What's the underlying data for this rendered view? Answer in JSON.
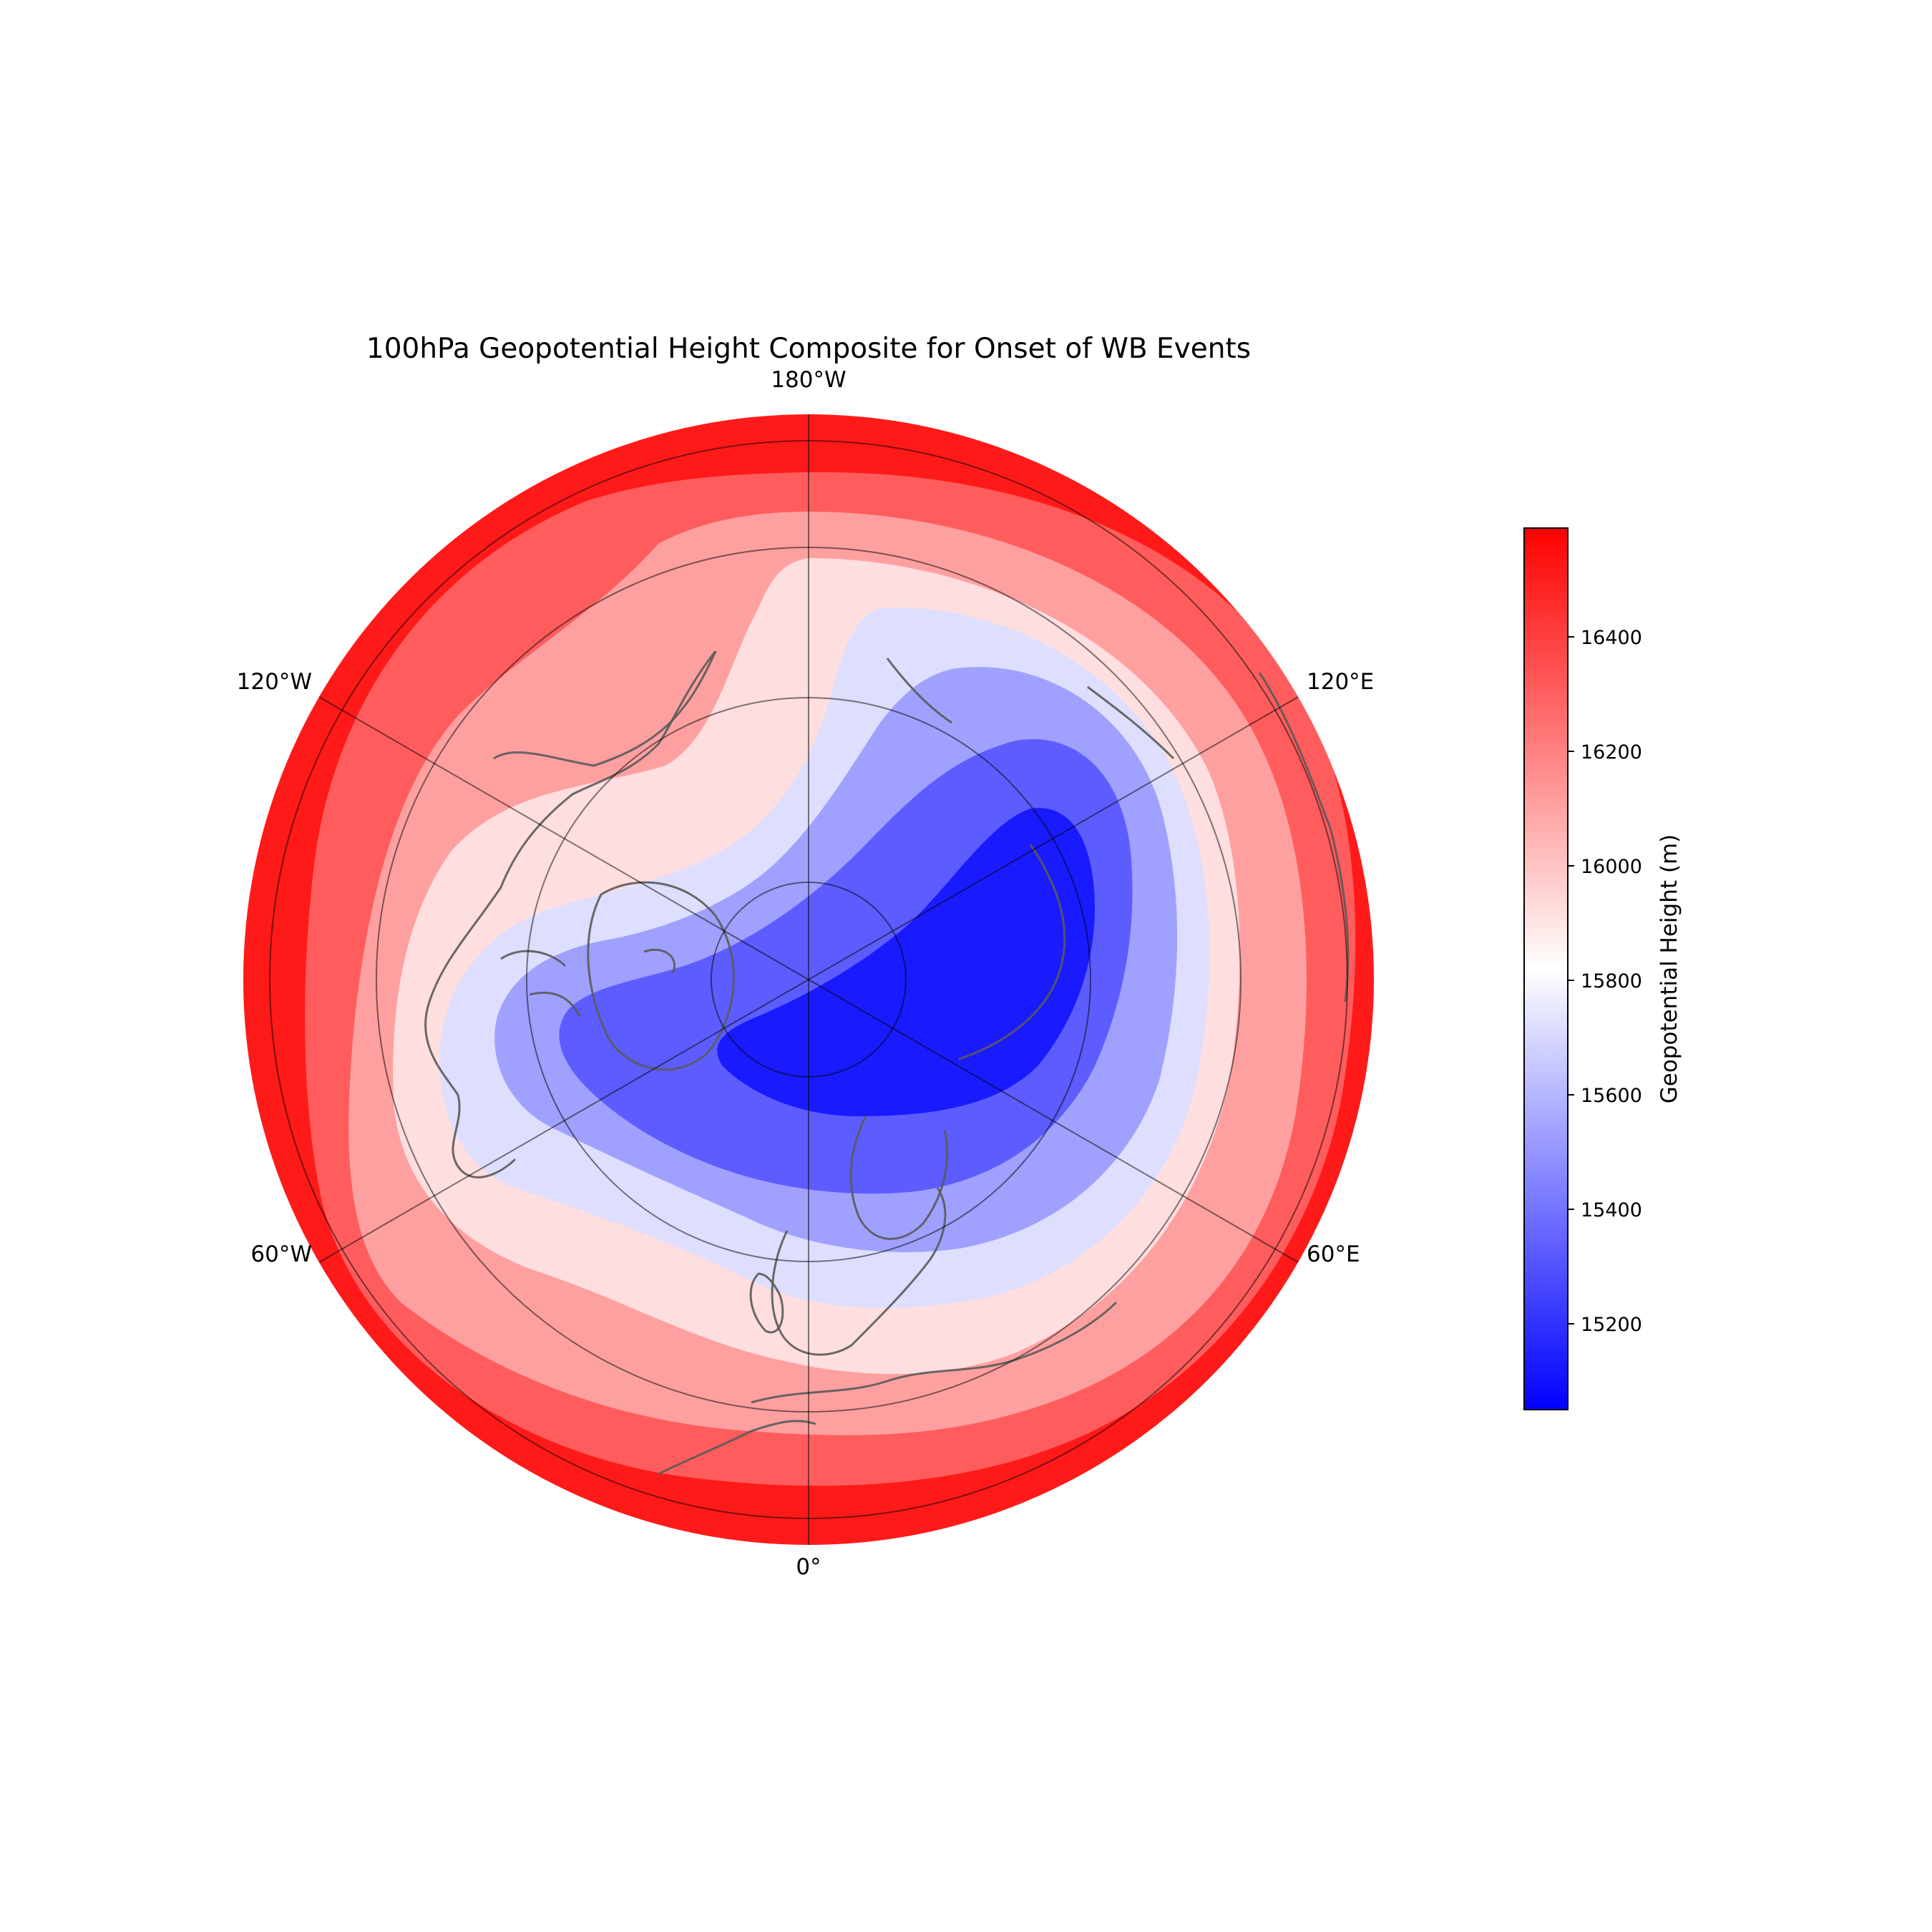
{
  "chart_data": {
    "type": "heatmap",
    "projection": "north-polar-stereographic",
    "title": "100hPa Geopotential Height Composite for Onset of WB Events",
    "longitude_labels": [
      {
        "key": "180W",
        "text": "180°W"
      },
      {
        "key": "120W",
        "text": "120°W"
      },
      {
        "key": "120E",
        "text": "120°E"
      },
      {
        "key": "60W",
        "text": "60°W"
      },
      {
        "key": "60E",
        "text": "60°E"
      },
      {
        "key": "0",
        "text": "0°"
      }
    ],
    "colorbar": {
      "label": "Geopotential Height (m)",
      "ticks": [
        15200,
        15400,
        15600,
        15800,
        16000,
        16200,
        16400
      ],
      "range": [
        15050,
        16590
      ],
      "colormap": "bwr",
      "colors": {
        "low": "#0000ff",
        "mid": "#ffffff",
        "high": "#ff0000"
      }
    },
    "contour_levels": [
      15100,
      15300,
      15500,
      15700,
      15900,
      16100,
      16300,
      16500
    ],
    "contour_fills": [
      "#1a1aff",
      "#5d5dff",
      "#a0a0ff",
      "#dedeff",
      "#ffdedf",
      "#ffa0a0",
      "#ff5d5d",
      "#ff1a1a"
    ],
    "minimum": {
      "value": 15100,
      "location": "Siberian side, near 60°E–120°E"
    },
    "gridlines": true,
    "coastlines": true
  }
}
